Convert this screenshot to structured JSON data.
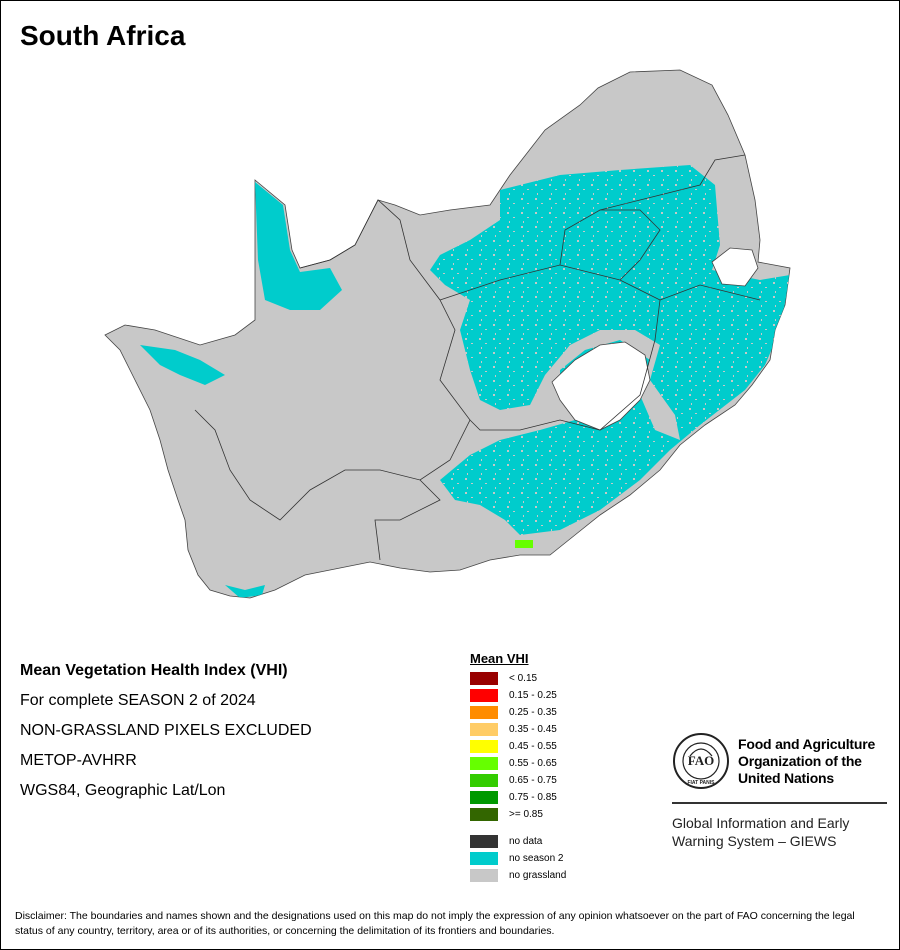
{
  "map": {
    "title": "South Africa"
  },
  "info": {
    "title": "Mean Vegetation Health Index (VHI)",
    "lines": [
      "For complete SEASON 2 of 2024",
      "NON-GRASSLAND PIXELS EXCLUDED",
      "METOP-AVHRR",
      "WGS84, Geographic Lat/Lon"
    ]
  },
  "legend": {
    "title": "Mean VHI",
    "classes": [
      {
        "label": "< 0.15",
        "color": "#990000"
      },
      {
        "label": "0.15 - 0.25",
        "color": "#ff0000"
      },
      {
        "label": "0.25 - 0.35",
        "color": "#ff8c00"
      },
      {
        "label": "0.35 - 0.45",
        "color": "#ffcc66"
      },
      {
        "label": "0.45 - 0.55",
        "color": "#ffff00"
      },
      {
        "label": "0.55 - 0.65",
        "color": "#66ff00"
      },
      {
        "label": "0.65 - 0.75",
        "color": "#33cc00"
      },
      {
        "label": "0.75 - 0.85",
        "color": "#009900"
      },
      {
        "label": ">= 0.85",
        "color": "#336600"
      }
    ],
    "other": [
      {
        "label": "no data",
        "color": "#333333"
      },
      {
        "label": "no season 2",
        "color": "#00cccc"
      },
      {
        "label": "no grassland",
        "color": "#c8c8c8"
      }
    ]
  },
  "fao": {
    "logo_text": "FAO",
    "logo_motto": "FIAT PANIS",
    "name_lines": [
      "Food and Agriculture",
      "Organization of the",
      "United Nations"
    ],
    "giews_lines": [
      "Global Information and Early",
      "Warning System – GIEWS"
    ]
  },
  "disclaimer": "Disclaimer: The boundaries and names shown and the designations used on this map do not imply the expression of any opinion whatsoever on the part of FAO concerning the legal status of any country, territory, area or of its authorities, or concerning the delimitation of its frontiers and boundaries."
}
